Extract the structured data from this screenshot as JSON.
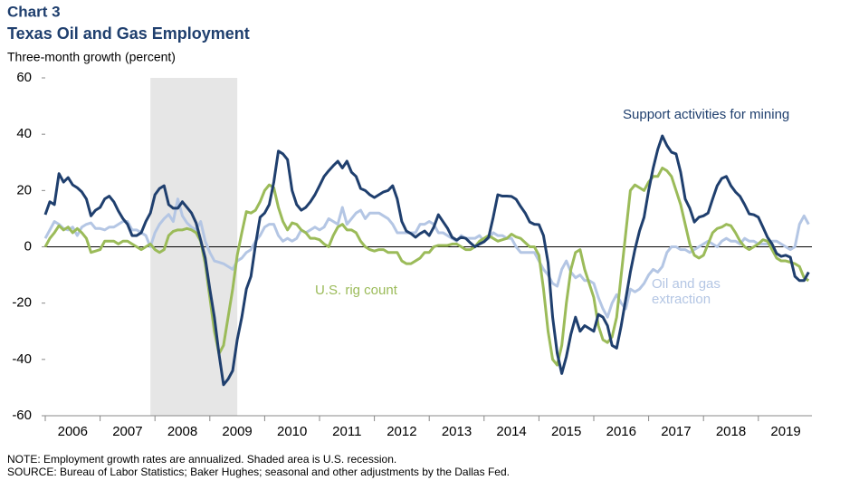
{
  "chart_data": {
    "type": "line",
    "title": "Chart 3",
    "subtitle": "Texas Oil and Gas Employment",
    "y_label": "Three-month growth (percent)",
    "categories": [
      null,
      null,
      null,
      null,
      null,
      null,
      "2006",
      null,
      null,
      null,
      null,
      null,
      null,
      null,
      null,
      null,
      null,
      null,
      "2007",
      null,
      null,
      null,
      null,
      null,
      null,
      null,
      null,
      null,
      null,
      null,
      "2008",
      null,
      null,
      null,
      null,
      null,
      null,
      null,
      null,
      null,
      null,
      null,
      "2009",
      null,
      null,
      null,
      null,
      null,
      null,
      null,
      null,
      null,
      null,
      null,
      "2010",
      null,
      null,
      null,
      null,
      null,
      null,
      null,
      null,
      null,
      null,
      null,
      "2011",
      null,
      null,
      null,
      null,
      null,
      null,
      null,
      null,
      null,
      null,
      null,
      "2012",
      null,
      null,
      null,
      null,
      null,
      null,
      null,
      null,
      null,
      null,
      null,
      "2013",
      null,
      null,
      null,
      null,
      null,
      null,
      null,
      null,
      null,
      null,
      null,
      "2014",
      null,
      null,
      null,
      null,
      null,
      null,
      null,
      null,
      null,
      null,
      null,
      "2015",
      null,
      null,
      null,
      null,
      null,
      null,
      null,
      null,
      null,
      null,
      null,
      "2016",
      null,
      null,
      null,
      null,
      null,
      null,
      null,
      null,
      null,
      null,
      null,
      "2017",
      null,
      null,
      null,
      null,
      null,
      null,
      null,
      null,
      null,
      null,
      null,
      "2018",
      null,
      null,
      null,
      null,
      null,
      null,
      null,
      null,
      null,
      null,
      null,
      "2019",
      null,
      null,
      null,
      null,
      null
    ],
    "series": [
      {
        "name": "Support activities for mining",
        "color": "#1f3f6e",
        "values": [
          11.4,
          16,
          15,
          26,
          23,
          24.6,
          22,
          21,
          19.5,
          17,
          11,
          13,
          14,
          17,
          18,
          16,
          12.7,
          10,
          8,
          4,
          4,
          5,
          9,
          12,
          18.5,
          20.7,
          21.7,
          15,
          13.7,
          13.7,
          16,
          14,
          12,
          8.5,
          2.4,
          -4,
          -15,
          -25,
          -38,
          -49,
          -47,
          -44,
          -33,
          -25,
          -15,
          -10.5,
          0.8,
          10.5,
          12,
          15,
          23,
          34,
          33,
          31,
          20,
          15,
          13,
          14,
          16,
          18.5,
          21.7,
          25,
          27,
          28.8,
          30.4,
          28,
          30.4,
          26.5,
          25,
          20.7,
          20,
          18.5,
          17.5,
          18.5,
          19.5,
          20,
          21.7,
          17,
          9,
          5.6,
          4.7,
          3.4,
          4.7,
          5.6,
          4,
          7,
          11.4,
          9,
          6.6,
          3.4,
          2.4,
          3.4,
          3,
          1.4,
          0,
          1,
          1.8,
          3.4,
          10.5,
          18.5,
          18,
          18,
          17.9,
          16.9,
          14.3,
          12,
          8.8,
          8,
          7.9,
          4,
          -5.6,
          -25,
          -37.8,
          -45,
          -39,
          -31,
          -25,
          -30,
          -28,
          -29,
          -30,
          -24,
          -25,
          -28,
          -35,
          -36,
          -28,
          -18.5,
          -9,
          -1,
          5.6,
          10.5,
          20,
          28,
          34.6,
          39.4,
          36,
          33.6,
          33,
          26.5,
          17,
          13.7,
          8.8,
          10.5,
          11,
          12,
          17,
          21.7,
          24.3,
          25,
          21.7,
          19.5,
          17.9,
          15,
          11.7,
          11.4,
          10.5,
          7,
          3.4,
          1,
          -2.4,
          -3.4,
          -3,
          -3.7,
          -10.5,
          -12,
          -12,
          -9
        ]
      },
      {
        "name": "U.S. rig count",
        "color": "#9bbb59",
        "values": [
          0,
          3,
          5,
          7.5,
          6,
          7,
          5,
          6.5,
          5,
          3,
          -2,
          -1.5,
          -1,
          2,
          2,
          2,
          1,
          2,
          2,
          1,
          0,
          -1,
          0,
          1,
          -1,
          -2,
          -1,
          4,
          5.5,
          6,
          6,
          6.5,
          6,
          5,
          2,
          -6,
          -18,
          -30,
          -38,
          -35,
          -25,
          -15,
          -3,
          5,
          12.5,
          12,
          13,
          16,
          20,
          22,
          21,
          14,
          9,
          6,
          8.5,
          8,
          6,
          5,
          3,
          3,
          2.5,
          1,
          0,
          4,
          7,
          8,
          6,
          6,
          5,
          2,
          0,
          -1,
          -1.5,
          -1,
          -1,
          -2,
          -2,
          -2,
          -5,
          -6,
          -6,
          -5,
          -4,
          -2,
          -2,
          0,
          0.5,
          0.5,
          0.5,
          1,
          1,
          0,
          -1,
          -1,
          0,
          2,
          3,
          4,
          3,
          2,
          2.5,
          3,
          4.5,
          3.5,
          3,
          1.5,
          0,
          0,
          -3,
          -15,
          -30,
          -40,
          -42,
          -35,
          -20,
          -8,
          -2,
          -1,
          -8,
          -13,
          -18,
          -28,
          -33,
          -34,
          -32,
          -25,
          -10,
          5,
          20,
          22,
          21,
          20,
          23,
          25,
          25,
          28,
          27,
          25,
          20,
          15,
          8,
          1,
          -3,
          -4,
          -3,
          1,
          5,
          6.5,
          7,
          8,
          7.5,
          5,
          2,
          0,
          -1,
          0,
          1,
          2.5,
          2,
          -1,
          -4,
          -5,
          -5,
          -5.5,
          -6,
          -7,
          -11,
          -12
        ]
      },
      {
        "name": "Oil and gas extraction",
        "color": "#b4c6e4",
        "values": [
          3,
          6,
          9,
          8,
          6.5,
          6,
          7,
          4,
          7,
          8,
          8.5,
          6.5,
          6.5,
          6,
          7,
          7,
          8,
          9,
          9,
          6,
          6,
          5,
          4,
          0,
          5,
          8,
          10,
          11.5,
          9,
          17,
          11,
          8.5,
          7,
          6,
          9,
          2,
          -2,
          -5,
          -5.5,
          -6,
          -7,
          -8,
          -5,
          -4,
          -2,
          -1,
          2,
          4,
          7,
          8,
          8,
          4,
          2,
          3,
          2,
          3,
          6,
          5,
          6,
          7,
          6,
          7,
          10,
          9,
          8,
          14,
          8,
          10,
          12,
          13,
          10,
          12,
          12,
          12,
          11,
          10,
          8,
          5,
          5,
          5,
          5,
          5,
          8,
          8,
          9,
          8,
          5,
          5,
          4,
          3,
          2,
          4,
          3,
          3,
          3,
          4,
          2,
          3,
          5,
          4,
          4,
          3,
          3,
          0,
          -2,
          -2,
          -2,
          -2,
          -5,
          -8,
          -10,
          -13,
          -14,
          -8,
          -5,
          -9,
          -11,
          -10,
          -12,
          -12,
          -13,
          -18,
          -22,
          -25,
          -20,
          -17,
          -20,
          -22,
          -15,
          -16,
          -15,
          -13,
          -10,
          -8,
          -9,
          -7,
          -2,
          0,
          0,
          -1,
          -1,
          -2,
          -1,
          0,
          1,
          2,
          1,
          0,
          2,
          3,
          2,
          2,
          1,
          3,
          2,
          2,
          1,
          1,
          1,
          2,
          2,
          1,
          0,
          -1,
          0,
          8,
          11,
          8
        ]
      }
    ],
    "shaded": {
      "from": 23,
      "to": 42
    },
    "ylim": [
      -60,
      60
    ],
    "yticks": [
      -60,
      -40,
      -20,
      0,
      20,
      40,
      60
    ],
    "notes": [
      "NOTE: Employment growth rates are annualized. Shaded area is U.S. recession.",
      "SOURCE: Bureau of Labor Statistics; Baker Hughes; seasonal and other adjustments by the Dallas Fed."
    ]
  }
}
